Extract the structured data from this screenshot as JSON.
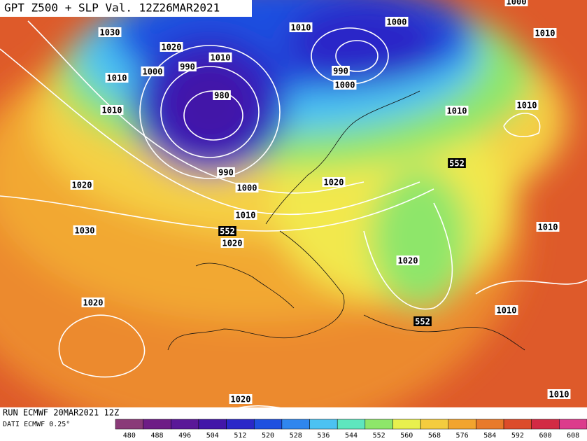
{
  "header": {
    "title": "GPT Z500 + SLP Val. 12Z26MAR2021"
  },
  "footer": {
    "run": "RUN ECMWF 20MAR2021 12Z",
    "source": "DATI ECMWF 0.25°"
  },
  "isobar_labels": [
    1030,
    1020,
    1010,
    1000,
    1010,
    1010,
    990,
    1000,
    1010,
    990,
    1000,
    980,
    1010,
    1010,
    1010,
    990,
    1000,
    1020,
    1020,
    1010,
    1020,
    1030,
    1010,
    1020,
    1020,
    1010,
    1010,
    1020,
    1000
  ],
  "z500_labels": [
    552,
    552,
    552
  ],
  "colorbar": {
    "labels": [
      480,
      488,
      496,
      504,
      512,
      520,
      528,
      536,
      544,
      552,
      560,
      568,
      576,
      584,
      592,
      600,
      608
    ],
    "colors": [
      "#8a3a78",
      "#6e1c86",
      "#5a1898",
      "#4216a8",
      "#2a28c8",
      "#1e50e0",
      "#2f86ee",
      "#4cc2f2",
      "#5ee6be",
      "#8ee66a",
      "#e8f04e",
      "#f4cc3e",
      "#f2a42e",
      "#e87a2a",
      "#dc4c2a",
      "#d22a44",
      "#dc3c8c"
    ]
  }
}
